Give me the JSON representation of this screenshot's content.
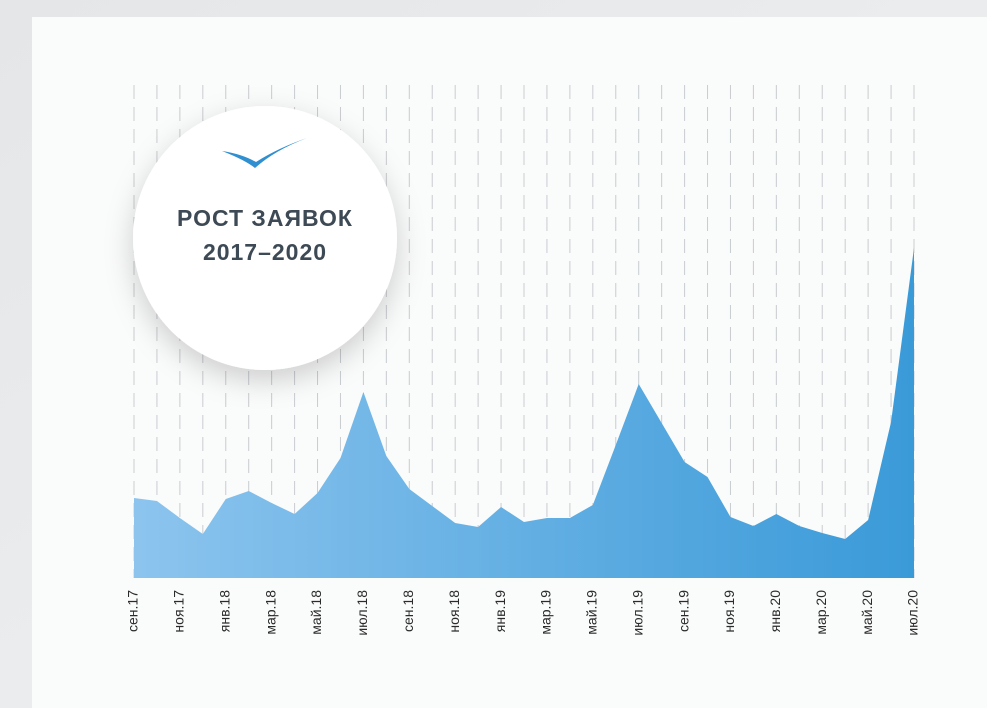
{
  "chart_data": {
    "type": "area",
    "title": [
      "РОСТ ЗАЯВОК",
      "2017–2020"
    ],
    "categories": [
      "сен.17",
      null,
      "ноя.17",
      null,
      "янв.18",
      null,
      "мар.18",
      null,
      "май.18",
      null,
      "июл.18",
      null,
      "сен.18",
      null,
      "ноя.18",
      null,
      "янв.19",
      null,
      "мар.19",
      null,
      "май.19",
      null,
      "июл.19",
      null,
      "сен.19",
      null,
      "ноя.19",
      null,
      "янв.20",
      null,
      "мар.20",
      null,
      "май.20",
      null,
      "июл.20"
    ],
    "values": [
      80,
      77,
      60,
      44,
      79,
      87,
      75,
      64,
      85,
      120,
      186,
      122,
      89,
      72,
      55,
      51,
      71,
      56,
      60,
      60,
      73,
      133,
      194,
      155,
      116,
      101,
      61,
      52,
      64,
      52,
      45,
      39,
      58,
      156,
      330
    ],
    "ylim": [
      0,
      330
    ],
    "color": [
      "#8cc4ee",
      "#3a9ad8"
    ],
    "grid": true
  }
}
